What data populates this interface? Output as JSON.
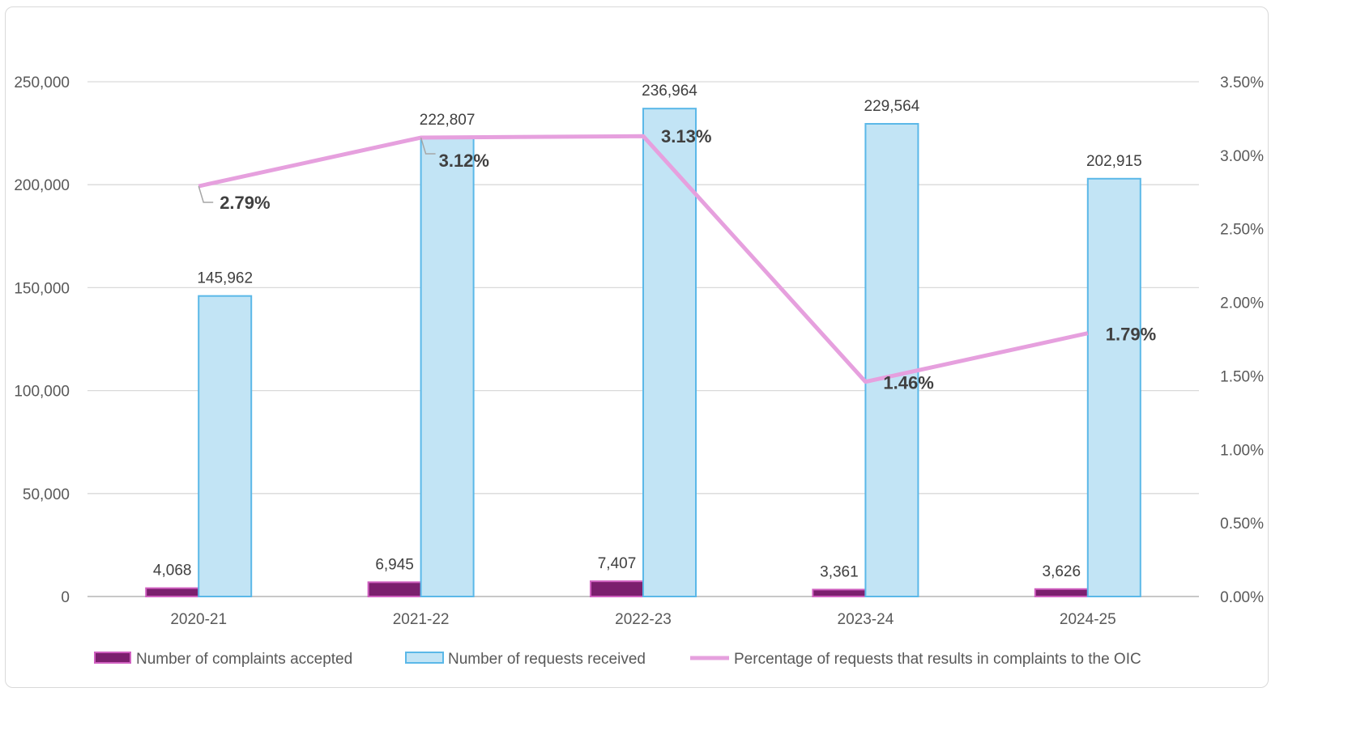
{
  "chart_data": {
    "type": "bar+line",
    "title": "",
    "categories": [
      "2020-21",
      "2021-22",
      "2022-23",
      "2023-24",
      "2024-25"
    ],
    "series": [
      {
        "name": "Number of complaints accepted",
        "type": "bar",
        "axis": "left",
        "values": [
          4068,
          6945,
          7407,
          3361,
          3626
        ],
        "labels": [
          "4,068",
          "6,945",
          "7,407",
          "3,361",
          "3,626"
        ],
        "color": "#7B1F6E",
        "border": "#D060C0"
      },
      {
        "name": "Number of requests received",
        "type": "bar",
        "axis": "left",
        "values": [
          145962,
          222807,
          236964,
          229564,
          202915
        ],
        "labels": [
          "145,962",
          "222,807",
          "236,964",
          "229,564",
          "202,915"
        ],
        "color": "#C2E4F5",
        "border": "#5BB8E8"
      },
      {
        "name": "Percentage of requests that results in complaints to the OIC",
        "type": "line",
        "axis": "right",
        "values": [
          2.79,
          3.12,
          3.13,
          1.46,
          1.79
        ],
        "labels": [
          "2.79%",
          "3.12%",
          "3.13%",
          "1.46%",
          "1.79%"
        ],
        "color": "#E6A0DE"
      }
    ],
    "left_axis": {
      "range": [
        0,
        250000
      ],
      "ticks": [
        "0",
        "50,000",
        "100,000",
        "150,000",
        "200,000",
        "250,000"
      ]
    },
    "right_axis": {
      "range": [
        0,
        3.5
      ],
      "ticks": [
        "0.00%",
        "0.50%",
        "1.00%",
        "1.50%",
        "2.00%",
        "2.50%",
        "3.00%",
        "3.50%"
      ]
    },
    "grid": true,
    "legend_position": "bottom"
  }
}
